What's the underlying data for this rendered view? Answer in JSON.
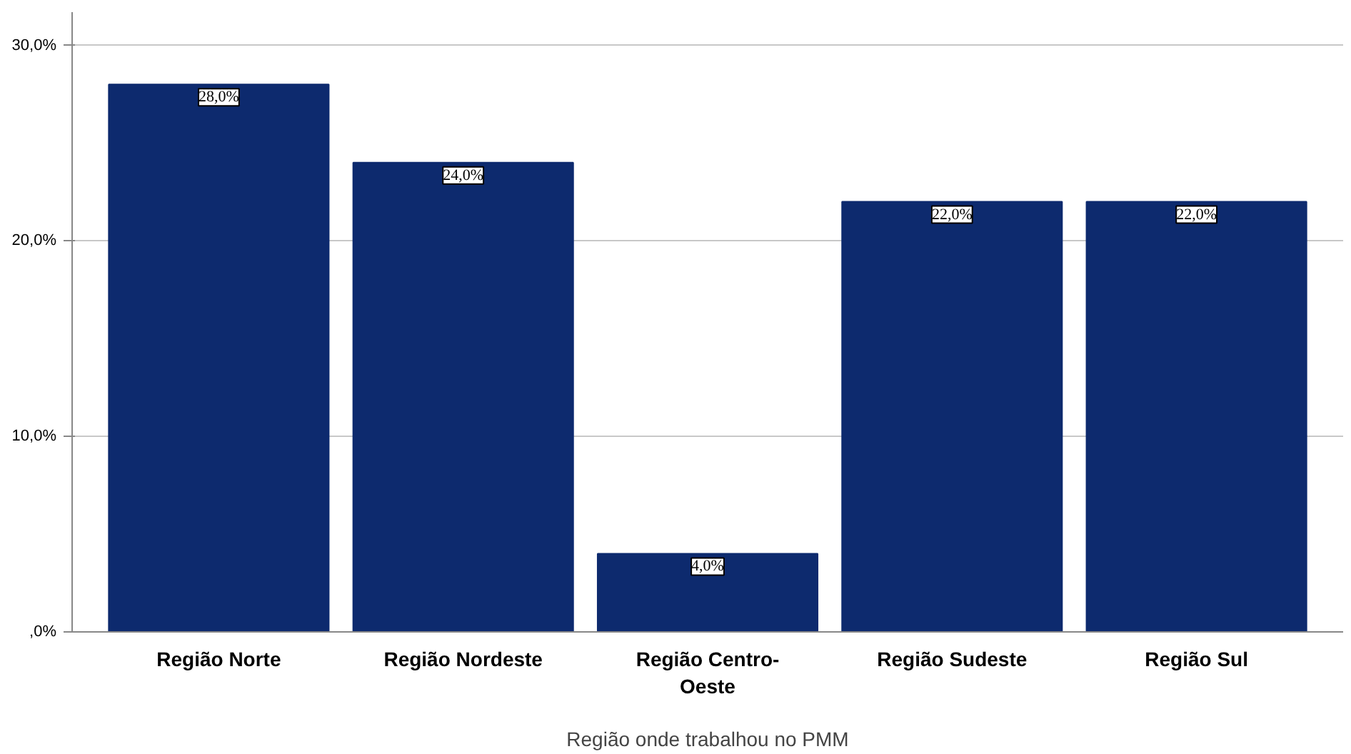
{
  "chart_data": {
    "type": "bar",
    "xlabel": "Região onde trabalhou no PMM",
    "categories": [
      "Região Norte",
      "Região Nordeste",
      "Região Centro-Oeste",
      "Região Sudeste",
      "Região Sul"
    ],
    "values": [
      28.0,
      24.0,
      4.0,
      22.0,
      22.0
    ],
    "value_labels": [
      "28,0%",
      "24,0%",
      "4,0%",
      "22,0%",
      "22,0%"
    ],
    "color": "#0d2a6e",
    "ylim": [
      0,
      31.7
    ],
    "yticks": [
      {
        "value": 0,
        "label": ",0%"
      },
      {
        "value": 10,
        "label": "10,0%"
      },
      {
        "value": 20,
        "label": "20,0%"
      },
      {
        "value": 30,
        "label": "30,0%"
      }
    ],
    "grid": "y"
  }
}
